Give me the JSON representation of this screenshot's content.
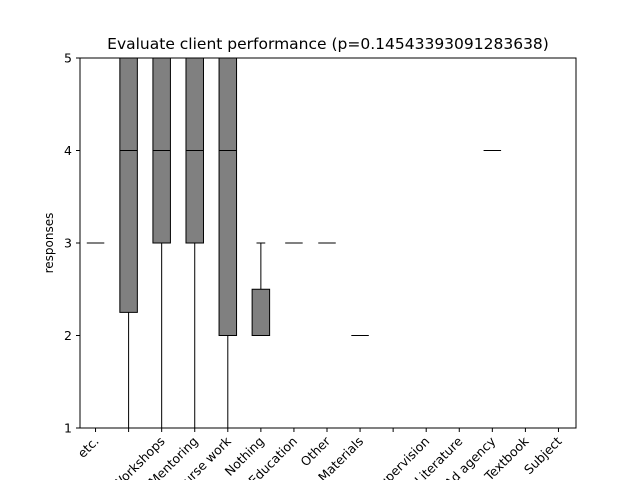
{
  "chart_data": {
    "type": "box",
    "title": "Evaluate client performance (p=0.14543393091283638)",
    "ylabel": "responses",
    "xlabel": "",
    "ylim": [
      1,
      5
    ],
    "yticks": [
      1,
      2,
      3,
      4,
      5
    ],
    "grid": false,
    "box_color": "#808080",
    "categories": [
      "etc.",
      "",
      "Workshops",
      "Mentoring",
      "Course work",
      "Nothing",
      "Education",
      "Other",
      "Materials",
      "",
      "Supervision",
      "Literature",
      "Ad agency",
      "Textbook",
      "Subject"
    ],
    "boxes": [
      {
        "q1": 3,
        "median": 3,
        "q3": 3,
        "whislo": 3,
        "whishi": 3
      },
      {
        "q1": 2.25,
        "median": 4,
        "q3": 5,
        "whislo": 1,
        "whishi": 5
      },
      {
        "q1": 3,
        "median": 4,
        "q3": 5,
        "whislo": 1,
        "whishi": 5
      },
      {
        "q1": 3,
        "median": 4,
        "q3": 5,
        "whislo": 1,
        "whishi": 5
      },
      {
        "q1": 2,
        "median": 4,
        "q3": 5,
        "whislo": 1,
        "whishi": 5
      },
      {
        "q1": 2,
        "median": 2,
        "q3": 2.5,
        "whislo": 2,
        "whishi": 3
      },
      {
        "q1": 3,
        "median": 3,
        "q3": 3,
        "whislo": 3,
        "whishi": 3
      },
      {
        "q1": 3,
        "median": 3,
        "q3": 3,
        "whislo": 3,
        "whishi": 3
      },
      {
        "q1": 2,
        "median": 2,
        "q3": 2,
        "whislo": 2,
        "whishi": 2
      },
      {
        "q1": 1,
        "median": 1,
        "q3": 1,
        "whislo": 1,
        "whishi": 1
      },
      {
        "q1": 1,
        "median": 1,
        "q3": 1,
        "whislo": 1,
        "whishi": 1
      },
      {
        "q1": 1,
        "median": 1,
        "q3": 1,
        "whislo": 1,
        "whishi": 1
      },
      {
        "q1": 4,
        "median": 4,
        "q3": 4,
        "whislo": 4,
        "whishi": 4
      },
      {
        "q1": 1,
        "median": 1,
        "q3": 1,
        "whislo": 1,
        "whishi": 1
      },
      {
        "q1": 1,
        "median": 1,
        "q3": 1,
        "whislo": 1,
        "whishi": 1
      }
    ]
  }
}
